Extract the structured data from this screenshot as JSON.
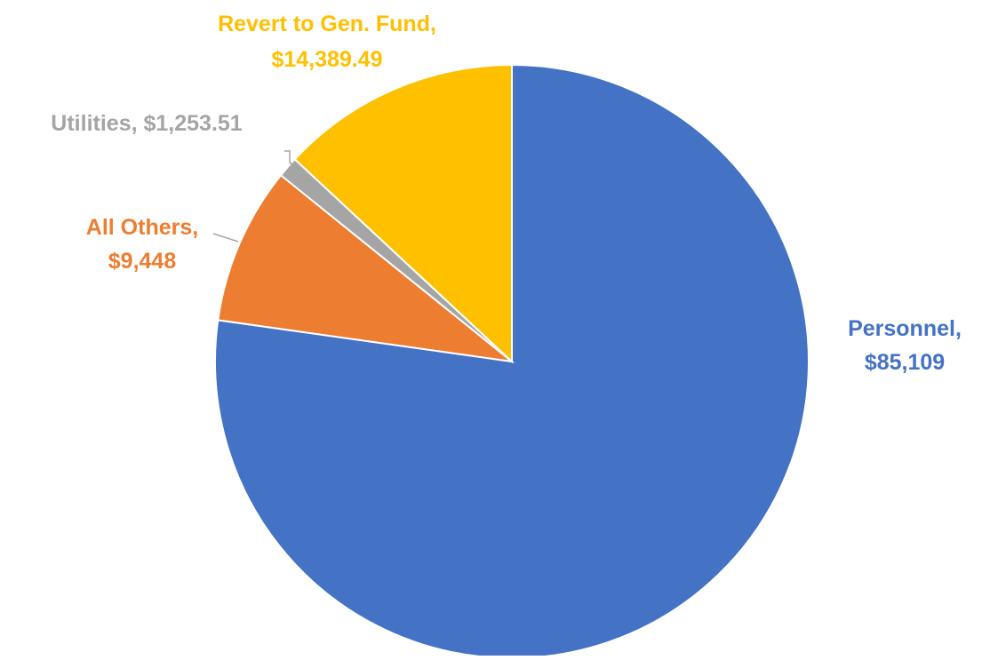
{
  "chart_data": {
    "type": "pie",
    "title": "",
    "slices": [
      {
        "label": "Personnel",
        "value": 85109,
        "label_lines": [
          "Personnel,",
          "$85,109"
        ],
        "color": "#4472C4"
      },
      {
        "label": "All Others",
        "value": 9448,
        "label_lines": [
          "All Others,",
          "$9,448"
        ],
        "color": "#ED7D31"
      },
      {
        "label": "Utilities",
        "value": 1253.51,
        "label_lines": [
          "Utilities,  $1,253.51"
        ],
        "color": "#A5A5A5"
      },
      {
        "label": "Revert to Gen. Fund",
        "value": 14389.49,
        "label_lines": [
          "Revert to Gen. Fund,",
          "$14,389.49"
        ],
        "color": "#FFC000"
      }
    ],
    "start_angle_deg": 0,
    "direction": "clockwise",
    "legend": "none",
    "slice_border_color": "#ffffff"
  }
}
